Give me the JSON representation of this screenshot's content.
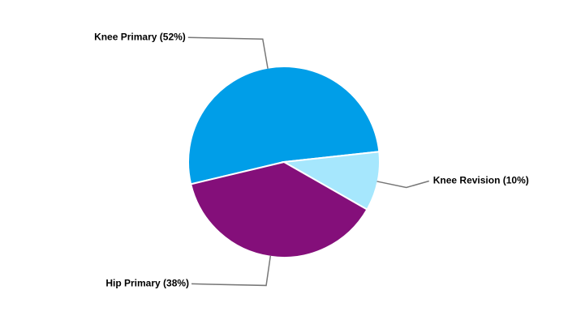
{
  "chart_data": {
    "type": "pie",
    "categories": [
      "Knee Primary (52%)",
      "Knee Revision (10%)",
      "Hip Primary (38%)"
    ],
    "values": [
      52,
      10,
      38
    ],
    "colors": [
      "#009ee8",
      "#a6e7fd",
      "#840f7a"
    ]
  }
}
